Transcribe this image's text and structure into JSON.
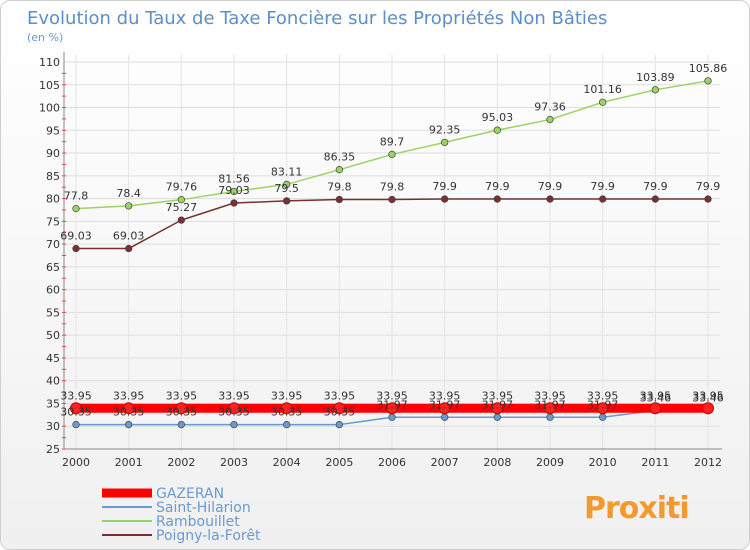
{
  "chart_data": {
    "type": "line",
    "title": "Evolution du Taux de Taxe Foncière sur les Propriétés Non Bâties",
    "ylabel": "(en %)",
    "xlabel": "",
    "categories": [
      "2000",
      "2001",
      "2002",
      "2003",
      "2004",
      "2005",
      "2006",
      "2007",
      "2008",
      "2009",
      "2010",
      "2011",
      "2012"
    ],
    "ylim": [
      25,
      110
    ],
    "yticks": [
      25,
      30,
      35,
      40,
      45,
      50,
      55,
      60,
      65,
      70,
      75,
      80,
      85,
      90,
      95,
      100,
      105,
      110
    ],
    "grid": true,
    "legend_position": "bottom-left",
    "series": [
      {
        "name": "GAZERAN",
        "color": "#ff0000",
        "values": [
          33.95,
          33.95,
          33.95,
          33.95,
          33.95,
          33.95,
          33.95,
          33.95,
          33.95,
          33.95,
          33.95,
          33.95,
          33.95
        ],
        "labels": [
          "33.95",
          "33.95",
          "33.95",
          "33.95",
          "33.95",
          "33.95",
          "33.95",
          "33.95",
          "33.95",
          "33.95",
          "33.95",
          "33.95",
          "33.95"
        ]
      },
      {
        "name": "Saint-Hilarion",
        "color": "#6a9ad0",
        "values": [
          30.35,
          30.35,
          30.35,
          30.35,
          30.35,
          30.35,
          31.97,
          31.97,
          31.97,
          31.97,
          31.97,
          33.46,
          33.46
        ],
        "labels": [
          "30.35",
          "30.35",
          "30.35",
          "30.35",
          "30.35",
          "30.35",
          "31.97",
          "31.97",
          "31.97",
          "31.97",
          "31.97",
          "33.46",
          "33.46"
        ]
      },
      {
        "name": "Rambouillet",
        "color": "#9ad464",
        "values": [
          77.8,
          78.4,
          79.76,
          81.56,
          83.11,
          86.35,
          89.7,
          92.35,
          95.03,
          97.36,
          101.16,
          103.89,
          105.86
        ],
        "labels": [
          "77.8",
          "78.4",
          "79.76",
          "81.56",
          "83.11",
          "86.35",
          "89.7",
          "92.35",
          "95.03",
          "97.36",
          "101.16",
          "103.89",
          "105.86"
        ]
      },
      {
        "name": "Poigny-la-Forêt",
        "color": "#7a3030",
        "values": [
          69.03,
          69.03,
          75.27,
          79.03,
          79.5,
          79.8,
          79.8,
          79.9,
          79.9,
          79.9,
          79.9,
          79.9,
          79.9
        ],
        "labels": [
          "69.03",
          "69.03",
          "75.27",
          "79.03",
          "79.5",
          "79.8",
          "79.8",
          "79.9",
          "79.9",
          "79.9",
          "79.9",
          "79.9",
          "79.9"
        ]
      }
    ]
  },
  "logo": {
    "text": "Proxiti"
  }
}
